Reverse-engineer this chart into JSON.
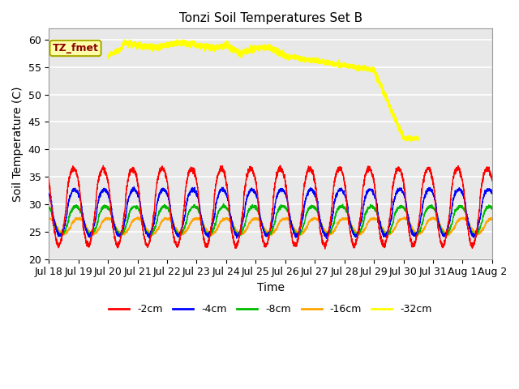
{
  "title": "Tonzi Soil Temperatures Set B",
  "xlabel": "Time",
  "ylabel": "Soil Temperature (C)",
  "ylim": [
    20,
    62
  ],
  "xlim": [
    0,
    360
  ],
  "bg_color": "#e8e8e8",
  "series": {
    "-2cm": {
      "color": "#ff0000",
      "lw": 1.0
    },
    "-4cm": {
      "color": "#0000ff",
      "lw": 1.0
    },
    "-8cm": {
      "color": "#00bb00",
      "lw": 1.0
    },
    "-16cm": {
      "color": "#ffa500",
      "lw": 1.0
    },
    "-32cm": {
      "color": "#ffff00",
      "lw": 1.5
    }
  },
  "xtick_labels": [
    "Jul 18",
    "Jul 19",
    "Jul 20",
    "Jul 21",
    "Jul 22",
    "Jul 23",
    "Jul 24",
    "Jul 25",
    "Jul 26",
    "Jul 27",
    "Jul 28",
    "Jul 29",
    "Jul 30",
    "Jul 31",
    "Aug 1",
    "Aug 2"
  ],
  "xtick_positions": [
    0,
    24,
    48,
    72,
    96,
    120,
    144,
    168,
    192,
    216,
    240,
    264,
    288,
    312,
    336,
    360
  ],
  "ytick_vals": [
    20,
    25,
    30,
    35,
    40,
    45,
    50,
    55,
    60
  ],
  "annotation_text": "TZ_fmet",
  "fig_width": 6.4,
  "fig_height": 4.8,
  "dpi": 100
}
